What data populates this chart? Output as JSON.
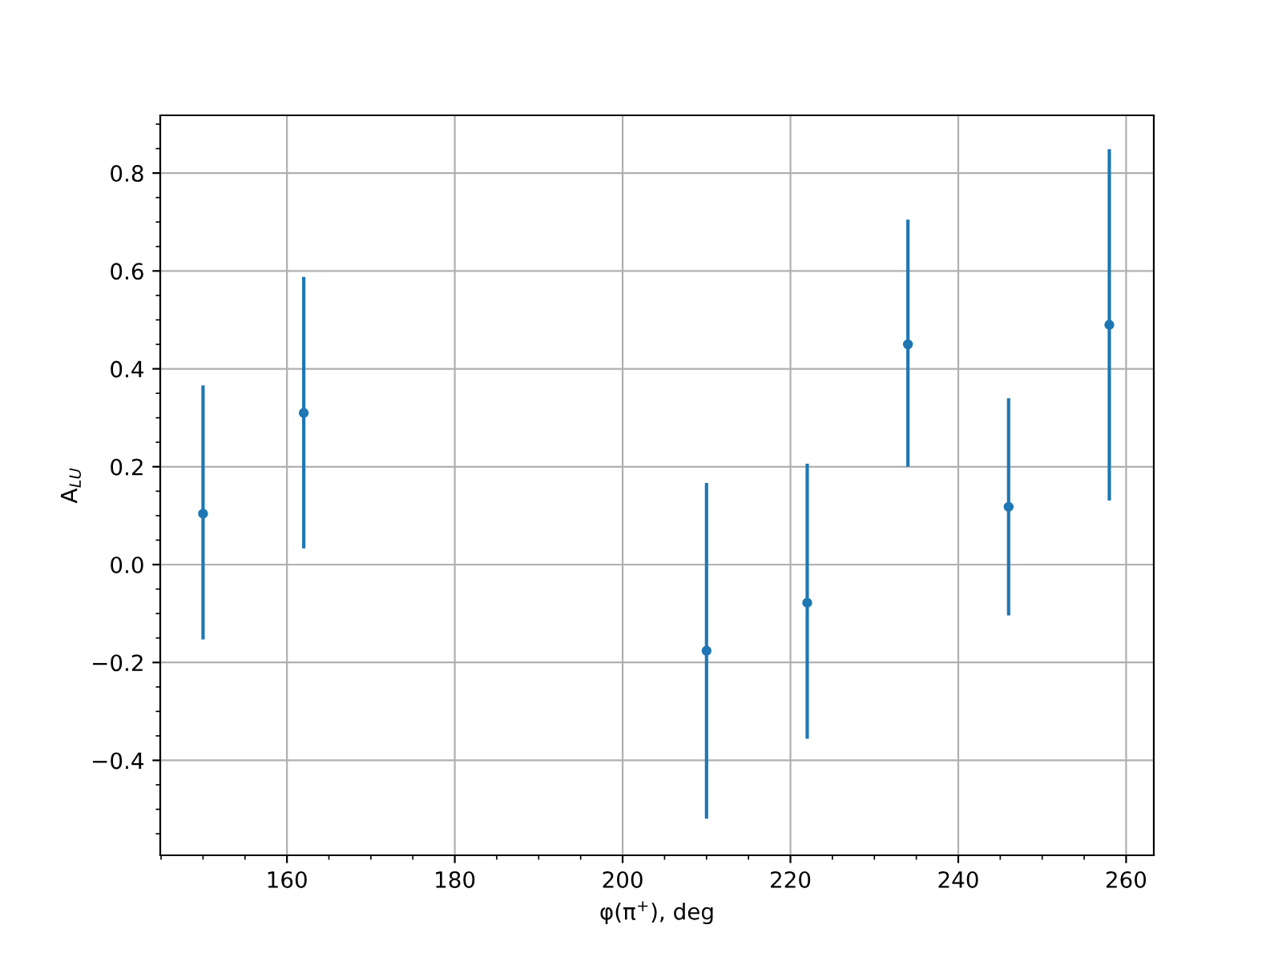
{
  "chart_data": {
    "type": "scatter",
    "xlabel": "φ(π$^{+}$), deg",
    "ylabel": "A$_{LU}$",
    "x": [
      150,
      162,
      210,
      222,
      234,
      246,
      258
    ],
    "series": [
      {
        "color": "#1f77b4",
        "values": [
          0.104,
          0.31,
          -0.176,
          -0.078,
          0.45,
          0.118,
          0.49
        ],
        "errors": [
          [
            -0.153,
            0.366
          ],
          [
            0.033,
            0.588
          ],
          [
            -0.519,
            0.167
          ],
          [
            -0.356,
            0.206
          ],
          [
            0.2,
            0.705
          ],
          [
            -0.104,
            0.34
          ],
          [
            0.131,
            0.849
          ]
        ]
      }
    ],
    "xlim": [
      144.9,
      263.3
    ],
    "ylim": [
      -0.594,
      0.918
    ],
    "xticks": [
      160,
      180,
      200,
      220,
      240,
      260
    ],
    "yticks": [
      {
        "value": -0.4,
        "label": "−0.4"
      },
      {
        "value": -0.2,
        "label": "−0.2"
      },
      {
        "value": 0.0,
        "label": "0.0"
      },
      0.2,
      0.4,
      0.6,
      0.8
    ],
    "grid": true,
    "marker": "circle"
  }
}
